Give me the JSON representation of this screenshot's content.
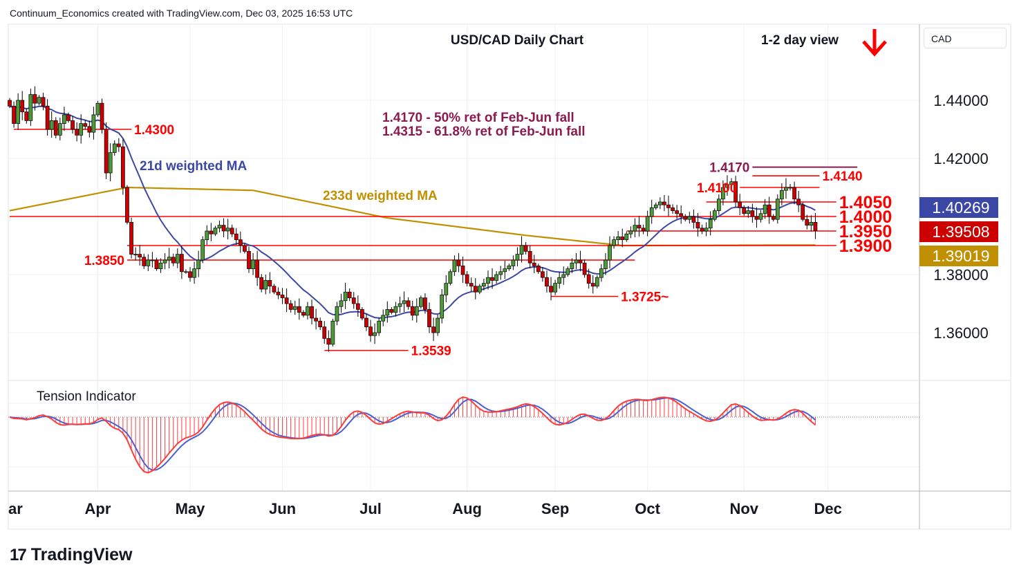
{
  "header": {
    "credit": "Continuum_Economics created with TradingView.com, Dec 03, 2025 16:53 UTC",
    "currency": "CAD",
    "logo_text": "TradingView"
  },
  "colors": {
    "up": "#4e9a3a",
    "down": "#cc0000",
    "ma21": "#3b47a5",
    "ma233": "#c09000",
    "level": "#ff0000",
    "fib": "#8b1a4f",
    "indicator_fast": "#ff3b3b",
    "indicator_slow": "#4a5fd0"
  },
  "chart_data": {
    "type": "candlestick",
    "title": "USD/CAD Daily Chart",
    "view_label": "1-2 day view",
    "view_direction": "down",
    "ylim": [
      1.337,
      1.461
    ],
    "y_ticks": [
      "1.44000",
      "1.42000",
      "1.38000",
      "1.36000"
    ],
    "y_tick_values": [
      1.44,
      1.42,
      1.38,
      1.36
    ],
    "x_tick_labels": [
      "ar",
      "Apr",
      "May",
      "Jun",
      "Jul",
      "Aug",
      "Sep",
      "Oct",
      "Nov",
      "Dec"
    ],
    "x_tick_index": [
      0,
      21,
      43,
      65,
      86,
      109,
      130,
      152,
      175,
      195
    ],
    "grid": true,
    "closes": [
      1.438,
      1.432,
      1.44,
      1.436,
      1.433,
      1.442,
      1.439,
      1.441,
      1.438,
      1.43,
      1.433,
      1.428,
      1.432,
      1.435,
      1.433,
      1.43,
      1.428,
      1.432,
      1.431,
      1.429,
      1.435,
      1.439,
      1.43,
      1.415,
      1.422,
      1.425,
      1.424,
      1.41,
      1.398,
      1.387,
      1.387,
      1.386,
      1.383,
      1.385,
      1.385,
      1.382,
      1.384,
      1.385,
      1.386,
      1.384,
      1.387,
      1.381,
      1.381,
      1.379,
      1.382,
      1.385,
      1.392,
      1.395,
      1.394,
      1.396,
      1.397,
      1.395,
      1.396,
      1.394,
      1.392,
      1.39,
      1.388,
      1.382,
      1.385,
      1.379,
      1.375,
      1.378,
      1.376,
      1.374,
      1.373,
      1.372,
      1.37,
      1.368,
      1.369,
      1.367,
      1.366,
      1.369,
      1.365,
      1.364,
      1.362,
      1.358,
      1.356,
      1.364,
      1.369,
      1.371,
      1.374,
      1.372,
      1.37,
      1.368,
      1.365,
      1.362,
      1.359,
      1.36,
      1.364,
      1.366,
      1.368,
      1.367,
      1.369,
      1.37,
      1.371,
      1.369,
      1.366,
      1.369,
      1.372,
      1.368,
      1.362,
      1.36,
      1.365,
      1.373,
      1.377,
      1.381,
      1.385,
      1.383,
      1.38,
      1.377,
      1.376,
      1.374,
      1.376,
      1.377,
      1.379,
      1.378,
      1.38,
      1.381,
      1.382,
      1.383,
      1.385,
      1.387,
      1.39,
      1.388,
      1.384,
      1.383,
      1.381,
      1.379,
      1.376,
      1.374,
      1.377,
      1.379,
      1.38,
      1.382,
      1.384,
      1.385,
      1.384,
      1.38,
      1.377,
      1.376,
      1.379,
      1.382,
      1.385,
      1.39,
      1.392,
      1.393,
      1.392,
      1.394,
      1.395,
      1.397,
      1.396,
      1.395,
      1.4,
      1.403,
      1.404,
      1.405,
      1.404,
      1.403,
      1.402,
      1.401,
      1.4,
      1.399,
      1.4,
      1.398,
      1.396,
      1.395,
      1.396,
      1.399,
      1.402,
      1.406,
      1.41,
      1.411,
      1.412,
      1.405,
      1.403,
      1.401,
      1.402,
      1.4,
      1.399,
      1.401,
      1.404,
      1.4,
      1.399,
      1.406,
      1.409,
      1.41,
      1.41,
      1.406,
      1.404,
      1.399,
      1.397,
      1.398,
      1.3951
    ],
    "ma233_points": [
      [
        0,
        1.402
      ],
      [
        28,
        1.41
      ],
      [
        58,
        1.409
      ],
      [
        90,
        1.3995
      ],
      [
        123,
        1.3935
      ],
      [
        146,
        1.39
      ],
      [
        197,
        1.3902
      ]
    ],
    "series_labels": [
      {
        "name": "21d weighted MA",
        "price_tag": "1.40269"
      },
      {
        "name": "233d weighted MA",
        "price_tag": "1.39019"
      },
      {
        "name": "Last",
        "price_tag": "1.39508"
      }
    ],
    "levels": [
      {
        "price": 1.43,
        "label": "1.4300",
        "from": 1,
        "to": 29,
        "label_side": "right",
        "size": "small",
        "color": "level"
      },
      {
        "price": 1.385,
        "label": "1.3850",
        "from": 28,
        "to": 149,
        "label_side": "left",
        "size": "small",
        "color": "level"
      },
      {
        "price": 1.4,
        "label": "1.4000",
        "from": 0,
        "to": 197,
        "label_side": "right",
        "size": "large",
        "color": "level"
      },
      {
        "price": 1.39,
        "label": "1.3900",
        "from": 28,
        "to": 197,
        "label_side": "right",
        "size": "large",
        "color": "level"
      },
      {
        "price": 1.395,
        "label": "1.3950",
        "from": 147,
        "to": 197,
        "label_side": "right",
        "size": "large",
        "color": "level"
      },
      {
        "price": 1.405,
        "label": "1.4050",
        "from": 166,
        "to": 197,
        "label_side": "right",
        "size": "large",
        "color": "level"
      },
      {
        "price": 1.41,
        "label": "1.4100",
        "from": 174,
        "to": 193,
        "label_side": "left",
        "size": "small",
        "color": "level"
      },
      {
        "price": 1.414,
        "label": "1.4140",
        "from": 177,
        "to": 193,
        "label_side": "right",
        "size": "small",
        "color": "level"
      },
      {
        "price": 1.417,
        "label": "1.4170",
        "from": 177,
        "to": 202,
        "label_side": "left",
        "size": "small",
        "color": "fib"
      },
      {
        "price": 1.3725,
        "label": "1.3725~",
        "from": 129,
        "to": 145,
        "label_side": "right",
        "size": "small",
        "color": "level"
      },
      {
        "price": 1.3539,
        "label": "1.3539",
        "from": 75,
        "to": 95,
        "label_side": "right",
        "size": "small",
        "color": "level"
      }
    ],
    "annotations": [
      "1.4170 - 50% ret of Feb-Jun fall",
      "1.4315 - 61.8% ret of Feb-Jun fall"
    ],
    "indicator": {
      "title": "Tension Indicator"
    }
  }
}
